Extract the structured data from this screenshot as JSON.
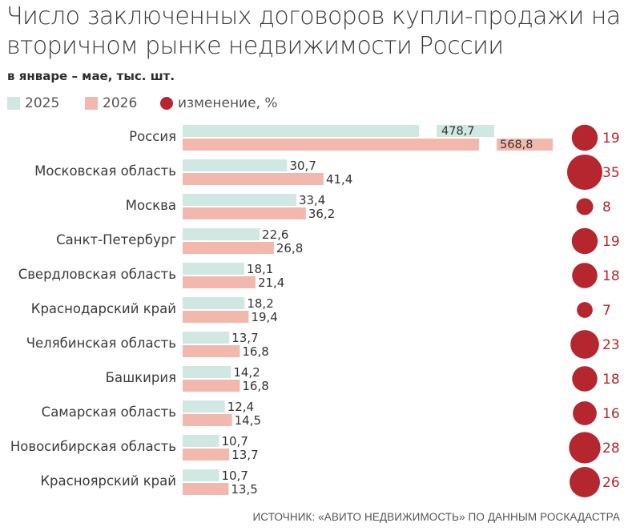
{
  "title": "Число заключенных договоров купли-продажи на вторичном рынке недвижимости России",
  "subtitle": "в январе – мае, тыс. шт.",
  "legend": [
    {
      "label": "2025",
      "color": "#cfe8e1"
    },
    {
      "label": "2026",
      "color": "#f2b8ad"
    },
    {
      "label": "изменение, %",
      "color": "#b5262e"
    }
  ],
  "source": "ИСТОЧНИК: «АВИТО НЕДВИЖИМОСТЬ» ПО ДАННЫМ РОСКАДАСТРА",
  "colors": {
    "y2025": "#cfe8e1",
    "y2026": "#f2b8ad",
    "change": "#b5262e",
    "label": "#333333",
    "change_text": "#b5262e"
  },
  "chart_data": {
    "type": "bar",
    "orientation": "horizontal",
    "axis_break": "Россия bars are truncated (broken axis)",
    "categories": [
      "Россия",
      "Московская область",
      "Москва",
      "Санкт-Петербург",
      "Свердловская область",
      "Краснодарский край",
      "Челябинская область",
      "Башкирия",
      "Самарская область",
      "Новосибирская область",
      "Красноярский край"
    ],
    "series": [
      {
        "name": "2025",
        "values": [
          478.7,
          30.7,
          33.4,
          22.6,
          18.1,
          18.2,
          13.7,
          14.2,
          12.4,
          10.7,
          10.7
        ],
        "labels": [
          "478,7",
          "30,7",
          "33,4",
          "22,6",
          "18,1",
          "18,2",
          "13,7",
          "14,2",
          "12,4",
          "10,7",
          "10,7"
        ]
      },
      {
        "name": "2026",
        "values": [
          568.8,
          41.4,
          36.2,
          26.8,
          21.4,
          19.4,
          16.8,
          16.8,
          14.5,
          13.7,
          13.5
        ],
        "labels": [
          "568,8",
          "41,4",
          "36,2",
          "26,8",
          "21,4",
          "19,4",
          "16,8",
          "16,8",
          "14,5",
          "13,7",
          "13,5"
        ]
      },
      {
        "name": "изменение, %",
        "values": [
          19,
          35,
          8,
          19,
          18,
          7,
          23,
          18,
          16,
          28,
          26
        ]
      }
    ]
  }
}
